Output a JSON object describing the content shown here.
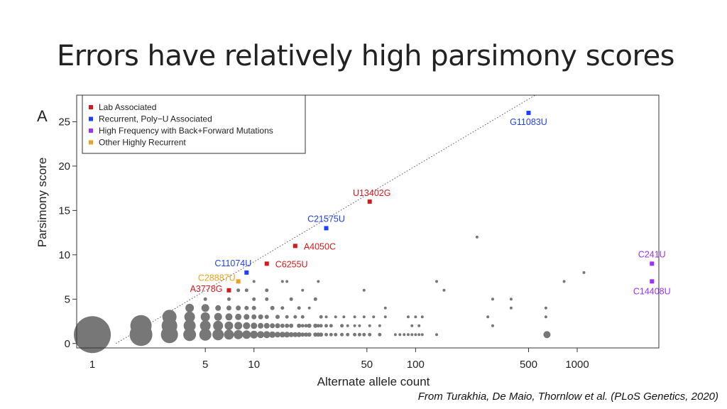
{
  "slide": {
    "title": "Errors have relatively high parsimony scores",
    "citation": "From Turakhia, De Maio, Thornlow et al. (PLoS Genetics, 2020)"
  },
  "chart_data": {
    "type": "scatter",
    "panel_label": "A",
    "xlabel": "Alternate allele count",
    "ylabel": "Parsimony score",
    "x_scale": "log",
    "xlim": [
      0.8,
      3200
    ],
    "ylim": [
      -0.5,
      28
    ],
    "x_ticks": [
      1,
      5,
      10,
      50,
      100,
      500,
      1000
    ],
    "x_tick_labels": [
      "1",
      "5",
      "10",
      "50",
      "100",
      "500",
      "1000"
    ],
    "y_ticks": [
      0,
      5,
      10,
      15,
      20,
      25
    ],
    "y_tick_labels": [
      "0",
      "5",
      "10",
      "15",
      "20",
      "25"
    ],
    "reference_line": {
      "style": "dotted",
      "points": [
        [
          1.4,
          0
        ],
        [
          550,
          28
        ]
      ]
    },
    "grid": false,
    "legend_position": "top-left",
    "legend": [
      {
        "label": "Lab Associated",
        "color": "#d7191c"
      },
      {
        "label": "Recurrent, Poly−U Associated",
        "color": "#1f3fff"
      },
      {
        "label": "High Frequency with Back+Forward Mutations",
        "color": "#9b30ff"
      },
      {
        "label": "Other Highly Recurrent",
        "color": "#f0a020"
      }
    ],
    "point_color": "#777777",
    "background_points": [
      {
        "x": 1,
        "y": 1,
        "s": 26
      },
      {
        "x": 2,
        "y": 1,
        "s": 16
      },
      {
        "x": 2,
        "y": 2,
        "s": 15
      },
      {
        "x": 3,
        "y": 1,
        "s": 12
      },
      {
        "x": 3,
        "y": 2,
        "s": 11
      },
      {
        "x": 3,
        "y": 3,
        "s": 10
      },
      {
        "x": 4,
        "y": 1,
        "s": 9
      },
      {
        "x": 4,
        "y": 2,
        "s": 8.5
      },
      {
        "x": 4,
        "y": 3,
        "s": 7.5
      },
      {
        "x": 4,
        "y": 4,
        "s": 6
      },
      {
        "x": 5,
        "y": 1,
        "s": 8.5
      },
      {
        "x": 5,
        "y": 2,
        "s": 7.5
      },
      {
        "x": 5,
        "y": 3,
        "s": 6.5
      },
      {
        "x": 5,
        "y": 4,
        "s": 5.5
      },
      {
        "x": 5,
        "y": 5,
        "s": 2.5
      },
      {
        "x": 6,
        "y": 1,
        "s": 8
      },
      {
        "x": 6,
        "y": 2,
        "s": 7
      },
      {
        "x": 6,
        "y": 3,
        "s": 5.5
      },
      {
        "x": 6,
        "y": 4,
        "s": 4
      },
      {
        "x": 7,
        "y": 1,
        "s": 7
      },
      {
        "x": 7,
        "y": 2,
        "s": 6
      },
      {
        "x": 7,
        "y": 3,
        "s": 5
      },
      {
        "x": 7,
        "y": 4,
        "s": 3.5
      },
      {
        "x": 7,
        "y": 5,
        "s": 2.5
      },
      {
        "x": 8,
        "y": 1,
        "s": 6.5
      },
      {
        "x": 8,
        "y": 2,
        "s": 5.5
      },
      {
        "x": 8,
        "y": 3,
        "s": 4.5
      },
      {
        "x": 8,
        "y": 4,
        "s": 3.5
      },
      {
        "x": 8,
        "y": 6,
        "s": 2.5
      },
      {
        "x": 9,
        "y": 1,
        "s": 6
      },
      {
        "x": 9,
        "y": 2,
        "s": 5
      },
      {
        "x": 9,
        "y": 3,
        "s": 4
      },
      {
        "x": 9,
        "y": 4,
        "s": 3
      },
      {
        "x": 9,
        "y": 6,
        "s": 2.5
      },
      {
        "x": 10,
        "y": 1,
        "s": 5.5
      },
      {
        "x": 10,
        "y": 2,
        "s": 4.5
      },
      {
        "x": 10,
        "y": 3,
        "s": 3.5
      },
      {
        "x": 10,
        "y": 4,
        "s": 3
      },
      {
        "x": 10,
        "y": 5,
        "s": 2.5
      },
      {
        "x": 10,
        "y": 7,
        "s": 2
      },
      {
        "x": 11,
        "y": 1,
        "s": 5
      },
      {
        "x": 11,
        "y": 2,
        "s": 4
      },
      {
        "x": 11,
        "y": 3,
        "s": 3.5
      },
      {
        "x": 12,
        "y": 1,
        "s": 5
      },
      {
        "x": 12,
        "y": 2,
        "s": 4
      },
      {
        "x": 12,
        "y": 3,
        "s": 3
      },
      {
        "x": 12,
        "y": 5,
        "s": 2.5
      },
      {
        "x": 12,
        "y": 6,
        "s": 2.5
      },
      {
        "x": 13,
        "y": 1,
        "s": 4.5
      },
      {
        "x": 13,
        "y": 2,
        "s": 3.5
      },
      {
        "x": 13,
        "y": 4,
        "s": 3
      },
      {
        "x": 14,
        "y": 1,
        "s": 4
      },
      {
        "x": 14,
        "y": 2,
        "s": 3.5
      },
      {
        "x": 14,
        "y": 3,
        "s": 3
      },
      {
        "x": 15,
        "y": 1,
        "s": 4
      },
      {
        "x": 15,
        "y": 2,
        "s": 3
      },
      {
        "x": 15,
        "y": 7,
        "s": 2
      },
      {
        "x": 15,
        "y": 4,
        "s": 2.5
      },
      {
        "x": 16,
        "y": 1,
        "s": 4
      },
      {
        "x": 16,
        "y": 2,
        "s": 3
      },
      {
        "x": 16,
        "y": 3,
        "s": 2.5
      },
      {
        "x": 16,
        "y": 7,
        "s": 2
      },
      {
        "x": 17,
        "y": 1,
        "s": 3.5
      },
      {
        "x": 17,
        "y": 2,
        "s": 3
      },
      {
        "x": 17,
        "y": 5,
        "s": 2.5
      },
      {
        "x": 18,
        "y": 1,
        "s": 3.5
      },
      {
        "x": 18,
        "y": 3,
        "s": 2.5
      },
      {
        "x": 19,
        "y": 1,
        "s": 3.5
      },
      {
        "x": 19,
        "y": 2,
        "s": 3
      },
      {
        "x": 19,
        "y": 4,
        "s": 2.5
      },
      {
        "x": 20,
        "y": 1,
        "s": 3
      },
      {
        "x": 20,
        "y": 2,
        "s": 2.5
      },
      {
        "x": 20,
        "y": 6,
        "s": 2
      },
      {
        "x": 20,
        "y": 3,
        "s": 2.5
      },
      {
        "x": 21,
        "y": 1,
        "s": 3
      },
      {
        "x": 21,
        "y": 2,
        "s": 2.5
      },
      {
        "x": 22,
        "y": 1,
        "s": 3
      },
      {
        "x": 22,
        "y": 2,
        "s": 3
      },
      {
        "x": 22,
        "y": 4,
        "s": 2
      },
      {
        "x": 24,
        "y": 1,
        "s": 3
      },
      {
        "x": 24,
        "y": 2,
        "s": 3
      },
      {
        "x": 24,
        "y": 5,
        "s": 2.5
      },
      {
        "x": 25,
        "y": 1,
        "s": 3
      },
      {
        "x": 25,
        "y": 2,
        "s": 2.5
      },
      {
        "x": 25,
        "y": 7,
        "s": 2
      },
      {
        "x": 26,
        "y": 1,
        "s": 3
      },
      {
        "x": 26,
        "y": 3,
        "s": 2.5
      },
      {
        "x": 26,
        "y": 2,
        "s": 2.5
      },
      {
        "x": 28,
        "y": 1,
        "s": 2.5
      },
      {
        "x": 28,
        "y": 2,
        "s": 2.5
      },
      {
        "x": 28,
        "y": 3,
        "s": 2
      },
      {
        "x": 30,
        "y": 1,
        "s": 2.5
      },
      {
        "x": 30,
        "y": 2,
        "s": 2.5
      },
      {
        "x": 32,
        "y": 1,
        "s": 2.5
      },
      {
        "x": 32,
        "y": 3,
        "s": 2
      },
      {
        "x": 35,
        "y": 1,
        "s": 2.5
      },
      {
        "x": 35,
        "y": 2,
        "s": 2.5
      },
      {
        "x": 36,
        "y": 3,
        "s": 2
      },
      {
        "x": 38,
        "y": 1,
        "s": 2.5
      },
      {
        "x": 38,
        "y": 2,
        "s": 2
      },
      {
        "x": 42,
        "y": 1,
        "s": 2.5
      },
      {
        "x": 42,
        "y": 2,
        "s": 2
      },
      {
        "x": 42,
        "y": 3,
        "s": 2
      },
      {
        "x": 45,
        "y": 1,
        "s": 2.5
      },
      {
        "x": 45,
        "y": 2,
        "s": 2
      },
      {
        "x": 48,
        "y": 1,
        "s": 2.5
      },
      {
        "x": 48,
        "y": 3,
        "s": 2
      },
      {
        "x": 48,
        "y": 6,
        "s": 2
      },
      {
        "x": 52,
        "y": 2,
        "s": 2
      },
      {
        "x": 52,
        "y": 1,
        "s": 2.5
      },
      {
        "x": 55,
        "y": 3,
        "s": 2
      },
      {
        "x": 60,
        "y": 1,
        "s": 2.5
      },
      {
        "x": 60,
        "y": 2,
        "s": 2
      },
      {
        "x": 65,
        "y": 4,
        "s": 2
      },
      {
        "x": 65,
        "y": 3,
        "s": 2
      },
      {
        "x": 75,
        "y": 1,
        "s": 2
      },
      {
        "x": 80,
        "y": 1,
        "s": 2
      },
      {
        "x": 85,
        "y": 1,
        "s": 2
      },
      {
        "x": 90,
        "y": 1,
        "s": 2
      },
      {
        "x": 90,
        "y": 3,
        "s": 2
      },
      {
        "x": 95,
        "y": 1,
        "s": 2
      },
      {
        "x": 95,
        "y": 2,
        "s": 2
      },
      {
        "x": 100,
        "y": 1,
        "s": 2
      },
      {
        "x": 100,
        "y": 3,
        "s": 2
      },
      {
        "x": 105,
        "y": 1,
        "s": 2
      },
      {
        "x": 105,
        "y": 2,
        "s": 2
      },
      {
        "x": 110,
        "y": 1,
        "s": 2
      },
      {
        "x": 110,
        "y": 3,
        "s": 2
      },
      {
        "x": 135,
        "y": 1,
        "s": 2
      },
      {
        "x": 135,
        "y": 7,
        "s": 2
      },
      {
        "x": 150,
        "y": 6,
        "s": 2
      },
      {
        "x": 240,
        "y": 12,
        "s": 2
      },
      {
        "x": 280,
        "y": 3,
        "s": 2
      },
      {
        "x": 300,
        "y": 2,
        "s": 2
      },
      {
        "x": 300,
        "y": 5,
        "s": 2
      },
      {
        "x": 390,
        "y": 5,
        "s": 2
      },
      {
        "x": 390,
        "y": 4,
        "s": 2
      },
      {
        "x": 650,
        "y": 1,
        "s": 5
      },
      {
        "x": 640,
        "y": 3,
        "s": 2
      },
      {
        "x": 640,
        "y": 4,
        "s": 2
      },
      {
        "x": 830,
        "y": 7,
        "s": 2
      },
      {
        "x": 1100,
        "y": 8,
        "s": 2
      }
    ],
    "labeled_sites": [
      {
        "label": "G11083U",
        "x": 500,
        "y": 26,
        "category": 1,
        "anchor": "middle",
        "dx": 0,
        "dy": 17
      },
      {
        "label": "U13402G",
        "x": 52,
        "y": 16,
        "category": 0,
        "anchor": "middle",
        "dx": 3,
        "dy": -8
      },
      {
        "label": "C21575U",
        "x": 28,
        "y": 13,
        "category": 1,
        "anchor": "middle",
        "dx": 0,
        "dy": -9
      },
      {
        "label": "A4050C",
        "x": 18,
        "y": 11,
        "category": 0,
        "anchor": "start",
        "dx": 12,
        "dy": 5
      },
      {
        "label": "C6255U",
        "x": 12,
        "y": 9,
        "category": 0,
        "anchor": "start",
        "dx": 12,
        "dy": 5
      },
      {
        "label": "C11074U",
        "x": 9,
        "y": 8,
        "category": 1,
        "anchor": "end",
        "dx": 7,
        "dy": -9
      },
      {
        "label": "C28887U",
        "x": 8,
        "y": 7,
        "category": 3,
        "anchor": "end",
        "dx": -4,
        "dy": -1
      },
      {
        "label": "A3778G",
        "x": 7,
        "y": 6,
        "category": 0,
        "anchor": "end",
        "dx": -9,
        "dy": 2
      },
      {
        "label": "C241U",
        "x": 2900,
        "y": 9,
        "category": 2,
        "anchor": "middle",
        "dx": 0,
        "dy": -9
      },
      {
        "label": "C14408U",
        "x": 2900,
        "y": 7,
        "category": 2,
        "anchor": "middle",
        "dx": 0,
        "dy": 18
      }
    ]
  }
}
